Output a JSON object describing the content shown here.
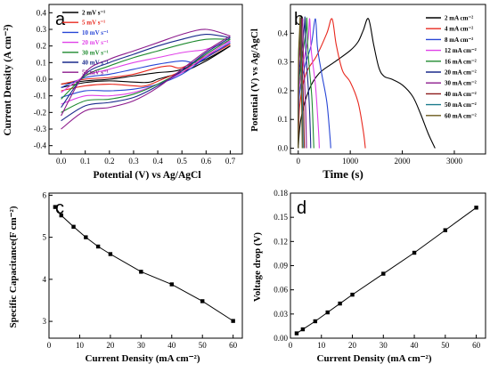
{
  "chart_data": [
    {
      "panel_label": "a",
      "type": "line",
      "xlabel": "Potential (V) vs Ag/AgCl",
      "ylabel": "Current Density (A cm⁻²)",
      "xlim": [
        -0.05,
        0.75
      ],
      "ylim": [
        -0.45,
        0.45
      ],
      "xticks": [
        "0.0",
        "0.1",
        "0.2",
        "0.3",
        "0.4",
        "0.5",
        "0.6",
        "0.7"
      ],
      "yticks": [
        "-0.4",
        "-0.3",
        "-0.2",
        "-0.1",
        "0.0",
        "0.1",
        "0.2",
        "0.3",
        "0.4"
      ],
      "legend_position": "top-left",
      "series": [
        {
          "name": "2  mV s⁻¹",
          "color": "#000000",
          "forward": [
            [
              0,
              -0.03
            ],
            [
              0.1,
              -0.01
            ],
            [
              0.2,
              0.0
            ],
            [
              0.3,
              0.02
            ],
            [
              0.4,
              0.04
            ],
            [
              0.45,
              0.045
            ],
            [
              0.5,
              0.06
            ],
            [
              0.6,
              0.12
            ],
            [
              0.7,
              0.2
            ]
          ],
          "reverse": [
            [
              0.7,
              0.2
            ],
            [
              0.6,
              0.11
            ],
            [
              0.5,
              0.04
            ],
            [
              0.45,
              0.02
            ],
            [
              0.4,
              0.0
            ],
            [
              0.35,
              -0.02
            ],
            [
              0.2,
              -0.01
            ],
            [
              0.1,
              -0.02
            ],
            [
              0,
              -0.05
            ]
          ]
        },
        {
          "name": "5  mV s⁻¹",
          "color": "#e8281e",
          "forward": [
            [
              0,
              -0.03
            ],
            [
              0.1,
              0.0
            ],
            [
              0.2,
              0.01
            ],
            [
              0.3,
              0.03
            ],
            [
              0.4,
              0.07
            ],
            [
              0.45,
              0.08
            ],
            [
              0.5,
              0.07
            ],
            [
              0.6,
              0.14
            ],
            [
              0.7,
              0.21
            ]
          ],
          "reverse": [
            [
              0.7,
              0.21
            ],
            [
              0.6,
              0.13
            ],
            [
              0.5,
              0.05
            ],
            [
              0.42,
              0.0
            ],
            [
              0.35,
              -0.04
            ],
            [
              0.3,
              -0.04
            ],
            [
              0.2,
              -0.03
            ],
            [
              0.1,
              -0.04
            ],
            [
              0,
              -0.07
            ]
          ]
        },
        {
          "name": "10 mV s⁻¹",
          "color": "#2846d6",
          "forward": [
            [
              0,
              -0.05
            ],
            [
              0.1,
              0.01
            ],
            [
              0.2,
              0.03
            ],
            [
              0.3,
              0.06
            ],
            [
              0.4,
              0.09
            ],
            [
              0.5,
              0.11
            ],
            [
              0.55,
              0.1
            ],
            [
              0.6,
              0.13
            ],
            [
              0.7,
              0.22
            ]
          ],
          "reverse": [
            [
              0.7,
              0.22
            ],
            [
              0.6,
              0.13
            ],
            [
              0.5,
              0.03
            ],
            [
              0.4,
              -0.03
            ],
            [
              0.3,
              -0.06
            ],
            [
              0.2,
              -0.07
            ],
            [
              0.1,
              -0.07
            ],
            [
              0,
              -0.11
            ]
          ]
        },
        {
          "name": "20 mV s⁻¹",
          "color": "#e040e8",
          "forward": [
            [
              0,
              -0.08
            ],
            [
              0.1,
              0.02
            ],
            [
              0.2,
              0.06
            ],
            [
              0.3,
              0.1
            ],
            [
              0.4,
              0.13
            ],
            [
              0.5,
              0.16
            ],
            [
              0.55,
              0.17
            ],
            [
              0.6,
              0.18
            ],
            [
              0.7,
              0.23
            ]
          ],
          "reverse": [
            [
              0.7,
              0.23
            ],
            [
              0.6,
              0.14
            ],
            [
              0.5,
              0.04
            ],
            [
              0.4,
              -0.03
            ],
            [
              0.3,
              -0.08
            ],
            [
              0.2,
              -0.1
            ],
            [
              0.1,
              -0.1
            ],
            [
              0,
              -0.15
            ]
          ]
        },
        {
          "name": "30 mV s⁻¹",
          "color": "#1e8a2e",
          "forward": [
            [
              0,
              -0.12
            ],
            [
              0.1,
              0.02
            ],
            [
              0.2,
              0.08
            ],
            [
              0.3,
              0.13
            ],
            [
              0.4,
              0.17
            ],
            [
              0.5,
              0.21
            ],
            [
              0.6,
              0.24
            ],
            [
              0.7,
              0.24
            ]
          ],
          "reverse": [
            [
              0.7,
              0.24
            ],
            [
              0.6,
              0.15
            ],
            [
              0.5,
              0.05
            ],
            [
              0.4,
              -0.03
            ],
            [
              0.3,
              -0.09
            ],
            [
              0.2,
              -0.12
            ],
            [
              0.1,
              -0.13
            ],
            [
              0,
              -0.2
            ]
          ]
        },
        {
          "name": "40 mV s⁻¹",
          "color": "#1a2a8c",
          "forward": [
            [
              0,
              -0.17
            ],
            [
              0.1,
              0.03
            ],
            [
              0.2,
              0.1
            ],
            [
              0.3,
              0.15
            ],
            [
              0.4,
              0.2
            ],
            [
              0.5,
              0.24
            ],
            [
              0.6,
              0.27
            ],
            [
              0.7,
              0.25
            ]
          ],
          "reverse": [
            [
              0.7,
              0.25
            ],
            [
              0.6,
              0.16
            ],
            [
              0.5,
              0.05
            ],
            [
              0.4,
              -0.04
            ],
            [
              0.3,
              -0.11
            ],
            [
              0.2,
              -0.14
            ],
            [
              0.1,
              -0.16
            ],
            [
              0,
              -0.25
            ]
          ]
        },
        {
          "name": "50 mV s⁻¹",
          "color": "#8c1a8c",
          "forward": [
            [
              0,
              -0.22
            ],
            [
              0.1,
              0.04
            ],
            [
              0.2,
              0.12
            ],
            [
              0.3,
              0.17
            ],
            [
              0.4,
              0.22
            ],
            [
              0.5,
              0.27
            ],
            [
              0.6,
              0.3
            ],
            [
              0.7,
              0.26
            ]
          ],
          "reverse": [
            [
              0.7,
              0.26
            ],
            [
              0.6,
              0.17
            ],
            [
              0.5,
              0.06
            ],
            [
              0.4,
              -0.05
            ],
            [
              0.3,
              -0.13
            ],
            [
              0.2,
              -0.17
            ],
            [
              0.1,
              -0.19
            ],
            [
              0,
              -0.3
            ]
          ]
        }
      ]
    },
    {
      "panel_label": "b",
      "type": "line",
      "xlabel": "Time (s)",
      "ylabel": "Potential (V) vs Ag/AgCl",
      "xlim": [
        -150,
        3600
      ],
      "ylim": [
        -0.02,
        0.5
      ],
      "xticks": [
        "0",
        "1000",
        "2000",
        "3000"
      ],
      "yticks": [
        "0.0",
        "0.1",
        "0.2",
        "0.3",
        "0.4"
      ],
      "legend_position": "top-right",
      "series": [
        {
          "name": "2  mA cm⁻²",
          "color": "#000000",
          "points": [
            [
              0,
              0
            ],
            [
              50,
              0.1
            ],
            [
              200,
              0.2
            ],
            [
              400,
              0.26
            ],
            [
              700,
              0.3
            ],
            [
              1000,
              0.34
            ],
            [
              1150,
              0.37
            ],
            [
              1250,
              0.41
            ],
            [
              1350,
              0.45
            ],
            [
              1450,
              0.36
            ],
            [
              1550,
              0.28
            ],
            [
              1650,
              0.25
            ],
            [
              1800,
              0.24
            ],
            [
              2000,
              0.22
            ],
            [
              2200,
              0.18
            ],
            [
              2350,
              0.12
            ],
            [
              2500,
              0.05
            ],
            [
              2630,
              0
            ]
          ]
        },
        {
          "name": "4  mA cm⁻²",
          "color": "#e8281e",
          "points": [
            [
              0,
              0
            ],
            [
              30,
              0.15
            ],
            [
              150,
              0.26
            ],
            [
              350,
              0.32
            ],
            [
              550,
              0.4
            ],
            [
              650,
              0.45
            ],
            [
              730,
              0.36
            ],
            [
              850,
              0.27
            ],
            [
              1000,
              0.23
            ],
            [
              1150,
              0.16
            ],
            [
              1250,
              0.06
            ],
            [
              1290,
              0
            ]
          ]
        },
        {
          "name": "8  mA cm⁻²",
          "color": "#2846d6",
          "points": [
            [
              0,
              0
            ],
            [
              20,
              0.18
            ],
            [
              120,
              0.28
            ],
            [
              250,
              0.36
            ],
            [
              330,
              0.45
            ],
            [
              370,
              0.35
            ],
            [
              450,
              0.26
            ],
            [
              550,
              0.16
            ],
            [
              610,
              0.04
            ],
            [
              625,
              0
            ]
          ]
        },
        {
          "name": "12 mA cm⁻²",
          "color": "#e040e8",
          "points": [
            [
              0,
              0
            ],
            [
              15,
              0.2
            ],
            [
              100,
              0.3
            ],
            [
              190,
              0.38
            ],
            [
              220,
              0.45
            ],
            [
              250,
              0.34
            ],
            [
              330,
              0.22
            ],
            [
              390,
              0.06
            ],
            [
              405,
              0
            ]
          ]
        },
        {
          "name": "16 mA cm⁻²",
          "color": "#1e8a2e",
          "points": [
            [
              0,
              0
            ],
            [
              10,
              0.22
            ],
            [
              80,
              0.32
            ],
            [
              150,
              0.41
            ],
            [
              165,
              0.45
            ],
            [
              190,
              0.33
            ],
            [
              260,
              0.18
            ],
            [
              290,
              0.05
            ],
            [
              300,
              0
            ]
          ]
        },
        {
          "name": "20 mA cm⁻²",
          "color": "#1a2a8c",
          "points": [
            [
              0,
              0
            ],
            [
              10,
              0.24
            ],
            [
              70,
              0.34
            ],
            [
              120,
              0.43
            ],
            [
              130,
              0.45
            ],
            [
              150,
              0.33
            ],
            [
              210,
              0.16
            ],
            [
              235,
              0.04
            ],
            [
              240,
              0
            ]
          ]
        },
        {
          "name": "30 mA cm⁻²",
          "color": "#8c1a8c",
          "points": [
            [
              0,
              0
            ],
            [
              8,
              0.26
            ],
            [
              50,
              0.37
            ],
            [
              82,
              0.45
            ],
            [
              100,
              0.32
            ],
            [
              140,
              0.15
            ],
            [
              158,
              0
            ]
          ]
        },
        {
          "name": "40 mA cm⁻²",
          "color": "#8c1a1a",
          "points": [
            [
              0,
              0
            ],
            [
              6,
              0.28
            ],
            [
              40,
              0.39
            ],
            [
              60,
              0.45
            ],
            [
              74,
              0.32
            ],
            [
              105,
              0.13
            ],
            [
              118,
              0
            ]
          ]
        },
        {
          "name": "50 mA cm⁻²",
          "color": "#1a7a8c",
          "points": [
            [
              0,
              0
            ],
            [
              5,
              0.3
            ],
            [
              32,
              0.4
            ],
            [
              47,
              0.45
            ],
            [
              58,
              0.31
            ],
            [
              84,
              0.12
            ],
            [
              94,
              0
            ]
          ]
        },
        {
          "name": "60 mA cm⁻²",
          "color": "#6b5a1a",
          "points": [
            [
              0,
              0
            ],
            [
              4,
              0.3
            ],
            [
              26,
              0.41
            ],
            [
              38,
              0.45
            ],
            [
              48,
              0.31
            ],
            [
              69,
              0.12
            ],
            [
              77,
              0
            ]
          ]
        }
      ]
    },
    {
      "panel_label": "c",
      "type": "line",
      "xlabel": "Current Density (mA cm⁻²)",
      "ylabel": "Specific Capacitance(F cm⁻²)",
      "xlim": [
        0,
        63
      ],
      "ylim": [
        2.6,
        6.05
      ],
      "xticks": [
        "0",
        "10",
        "20",
        "30",
        "40",
        "50",
        "60"
      ],
      "yticks": [
        "3",
        "4",
        "5",
        "6"
      ],
      "x": [
        2,
        4,
        8,
        12,
        16,
        20,
        30,
        40,
        50,
        60
      ],
      "values": [
        5.72,
        5.52,
        5.25,
        5.0,
        4.78,
        4.6,
        4.18,
        3.88,
        3.48,
        3.01
      ]
    },
    {
      "panel_label": "d",
      "type": "line",
      "xlabel": "Current Density (mA cm⁻²)",
      "ylabel": "Voltage drop (V)",
      "xlim": [
        0,
        63
      ],
      "ylim": [
        0,
        0.18
      ],
      "xticks": [
        "0",
        "10",
        "20",
        "30",
        "40",
        "50",
        "60"
      ],
      "yticks": [
        "0.00",
        "0.03",
        "0.06",
        "0.09",
        "0.12",
        "0.15",
        "0.18"
      ],
      "x": [
        2,
        4,
        8,
        12,
        16,
        20,
        30,
        40,
        50,
        60
      ],
      "values": [
        0.006,
        0.011,
        0.021,
        0.032,
        0.043,
        0.054,
        0.08,
        0.106,
        0.134,
        0.162
      ]
    }
  ]
}
